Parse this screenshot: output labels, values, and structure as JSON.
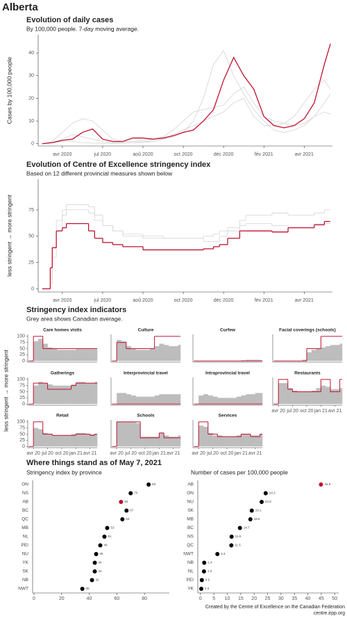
{
  "title": "Alberta",
  "credits": [
    "Created by the Centre of Excellence on the Canadian Federation",
    "centre.irpp.org"
  ],
  "chart_data": [
    {
      "type": "line",
      "title": "Evolution of daily cases",
      "subtitle": "By 100,000 people. 7-day moving average.",
      "y_label": "Cases by 100,000 people",
      "x": [
        2,
        2.5,
        3,
        3.5,
        4,
        4.5,
        5,
        5.5,
        6,
        6.5,
        7,
        7.5,
        8,
        8.5,
        9,
        9.5,
        10,
        10.5,
        11,
        11.5,
        12,
        12.5,
        13,
        13.5,
        14,
        14.5,
        15,
        15.5,
        16,
        16.3
      ],
      "xlim": [
        1.8,
        16.4
      ],
      "xticks": [
        {
          "value": 3,
          "label": "avr 2020"
        },
        {
          "value": 5,
          "label": "jul 2020"
        },
        {
          "value": 7,
          "label": "aoû 2020"
        },
        {
          "value": 9,
          "label": "oct 2020"
        },
        {
          "value": 11,
          "label": "déc 2020"
        },
        {
          "value": 13,
          "label": "fév 2021"
        },
        {
          "value": 15,
          "label": "avr 2021"
        }
      ],
      "ylim": [
        -1,
        48
      ],
      "yticks": [
        0,
        10,
        20,
        30,
        40
      ],
      "series": [
        {
          "color": "#d3d3d3",
          "values": [
            0,
            0.3,
            1,
            1,
            0.5,
            0.3,
            0.2,
            0.2,
            0.3,
            0.5,
            1,
            1,
            2,
            3,
            5,
            10,
            20,
            35,
            41,
            30,
            22,
            15,
            10,
            6,
            5,
            6,
            8,
            12,
            18,
            22
          ]
        },
        {
          "color": "#d3d3d3",
          "values": [
            0,
            1,
            5,
            9,
            11,
            10,
            6,
            2,
            1,
            1,
            1.5,
            2,
            3,
            6,
            10,
            14,
            15,
            16,
            17,
            22,
            25,
            18,
            12,
            10,
            9,
            8,
            9,
            12,
            14,
            13
          ]
        },
        {
          "color": "#d3d3d3",
          "values": [
            0,
            0.5,
            2,
            4,
            3,
            2,
            1,
            0.5,
            0.5,
            0.5,
            0.5,
            1,
            2,
            4,
            6,
            8,
            10,
            12,
            14,
            18,
            20,
            12,
            8,
            8,
            9,
            12,
            18,
            24,
            28,
            24
          ]
        },
        {
          "color": "#c0102e",
          "values": [
            0,
            0.5,
            1.5,
            2,
            5,
            6.5,
            2,
            1,
            1,
            2.5,
            2.5,
            2,
            2.5,
            3.5,
            5,
            6,
            10,
            15,
            28,
            38,
            30,
            24,
            12,
            8,
            7,
            8,
            11,
            18,
            35,
            44
          ]
        }
      ]
    },
    {
      "type": "step",
      "title": "Evolution of Centre of Excellence stringency index",
      "subtitle": "Based on 12 different provincial measures shown below",
      "y_label": "less stringent → more stringent",
      "x": [
        2,
        2.4,
        2.5,
        2.7,
        3,
        3.2,
        4.3,
        4.6,
        5,
        5.5,
        6,
        7,
        8,
        10,
        10.5,
        10.8,
        11.2,
        11.8,
        12.1,
        13.4,
        14.2,
        15.5,
        16,
        16.3
      ],
      "xlim": [
        1.8,
        16.4
      ],
      "xticks": [
        {
          "value": 3,
          "label": "avr 2020"
        },
        {
          "value": 5,
          "label": "jul 2020"
        },
        {
          "value": 7,
          "label": "aoû 2020"
        },
        {
          "value": 9,
          "label": "oct 2020"
        },
        {
          "value": 11,
          "label": "déc 2020"
        },
        {
          "value": 13,
          "label": "fév 2021"
        },
        {
          "value": 15,
          "label": "avr 2021"
        }
      ],
      "ylim": [
        -3,
        104
      ],
      "yticks": [
        0,
        25,
        50,
        75
      ],
      "series": [
        {
          "color": "#d3d3d3",
          "values": [
            0,
            5,
            30,
            55,
            70,
            75,
            72,
            65,
            60,
            55,
            50,
            48,
            48,
            50,
            52,
            55,
            58,
            60,
            62,
            60,
            58,
            60,
            62,
            62
          ]
        },
        {
          "color": "#d3d3d3",
          "values": [
            0,
            10,
            40,
            65,
            75,
            80,
            78,
            70,
            60,
            55,
            52,
            50,
            48,
            45,
            45,
            50,
            55,
            65,
            70,
            72,
            70,
            72,
            75,
            75
          ]
        },
        {
          "color": "#c0102e",
          "values": [
            0,
            20,
            39,
            55,
            58,
            62,
            55,
            48,
            44,
            42,
            40,
            37,
            37,
            38,
            40,
            42,
            48,
            55,
            55,
            54,
            58,
            61,
            64,
            64
          ]
        }
      ]
    },
    {
      "type": "small-multiples",
      "title": "Stringency index indicators",
      "subtitle": "Grey area shows Canadian average.",
      "y_label": "less stringent → more stringent",
      "x": [
        2,
        3,
        4,
        5,
        6,
        7,
        8,
        9,
        10,
        11,
        12,
        13,
        14,
        15,
        16
      ],
      "xlim": [
        1.8,
        16.5
      ],
      "xticks": [
        {
          "value": 3,
          "label": "avr 20"
        },
        {
          "value": 6,
          "label": "jul 20"
        },
        {
          "value": 9,
          "label": "oct 20"
        },
        {
          "value": 12,
          "label": "jan 21"
        },
        {
          "value": 15,
          "label": "avr 21"
        }
      ],
      "ylim": [
        -5,
        108
      ],
      "yticks": [
        0,
        25,
        50,
        75,
        100
      ],
      "color": "#c0102e",
      "average_color": "#bdbdbd",
      "panels": [
        {
          "title": "Care homes visits",
          "values": [
            0,
            100,
            100,
            50,
            50,
            50,
            50,
            50,
            50,
            50,
            50,
            50,
            50,
            50,
            50
          ],
          "average": [
            0,
            80,
            90,
            70,
            55,
            50,
            45,
            45,
            45,
            45,
            48,
            48,
            48,
            48,
            48
          ]
        },
        {
          "title": "Culture",
          "values": [
            0,
            75,
            75,
            50,
            50,
            50,
            50,
            50,
            50,
            100,
            100,
            100,
            100,
            100,
            100
          ],
          "average": [
            0,
            85,
            80,
            60,
            50,
            45,
            45,
            45,
            50,
            60,
            70,
            65,
            60,
            60,
            65
          ]
        },
        {
          "title": "Curfew",
          "values": [
            0,
            0,
            0,
            0,
            0,
            0,
            0,
            0,
            0,
            0,
            0,
            0,
            0,
            0,
            0
          ],
          "average": [
            0,
            0,
            0,
            0,
            0,
            0,
            0,
            0,
            0,
            0,
            3,
            5,
            5,
            5,
            3
          ]
        },
        {
          "title": "Facial coverings (schools)",
          "values": [
            0,
            0,
            0,
            0,
            0,
            0,
            0,
            50,
            50,
            50,
            100,
            100,
            100,
            100,
            100
          ],
          "average": [
            0,
            0,
            0,
            0,
            0,
            0,
            5,
            35,
            45,
            50,
            55,
            60,
            65,
            65,
            70
          ]
        },
        {
          "title": "Gatherings",
          "values": [
            0,
            85,
            85,
            85,
            60,
            60,
            60,
            60,
            60,
            75,
            85,
            85,
            85,
            85,
            85
          ],
          "average": [
            0,
            75,
            90,
            85,
            80,
            75,
            75,
            75,
            75,
            80,
            90,
            90,
            85,
            85,
            90
          ]
        },
        {
          "title": "Interprovincial travel",
          "values": [
            0,
            0,
            0,
            0,
            0,
            0,
            0,
            0,
            0,
            0,
            0,
            0,
            0,
            0,
            0
          ],
          "average": [
            0,
            45,
            45,
            40,
            35,
            30,
            30,
            30,
            30,
            35,
            40,
            40,
            40,
            40,
            40
          ]
        },
        {
          "title": "Intraprovincial travel",
          "values": [
            0,
            0,
            0,
            0,
            0,
            0,
            0,
            0,
            0,
            0,
            0,
            0,
            0,
            0,
            0
          ],
          "average": [
            0,
            35,
            40,
            35,
            30,
            25,
            25,
            25,
            25,
            30,
            35,
            40,
            40,
            45,
            45
          ]
        },
        {
          "title": "Restaurants",
          "values": [
            0,
            100,
            100,
            60,
            50,
            50,
            50,
            50,
            50,
            50,
            100,
            100,
            50,
            50,
            100
          ],
          "average": [
            0,
            85,
            85,
            65,
            55,
            50,
            50,
            50,
            55,
            65,
            75,
            70,
            60,
            60,
            65
          ]
        },
        {
          "title": "Retail",
          "values": [
            0,
            100,
            100,
            50,
            50,
            45,
            45,
            45,
            45,
            45,
            50,
            50,
            50,
            45,
            50
          ],
          "average": [
            0,
            75,
            70,
            55,
            50,
            45,
            45,
            45,
            45,
            50,
            55,
            55,
            50,
            50,
            50
          ]
        },
        {
          "title": "Schools",
          "values": [
            0,
            100,
            100,
            100,
            100,
            100,
            35,
            35,
            35,
            35,
            55,
            35,
            35,
            35,
            35
          ],
          "average": [
            0,
            100,
            100,
            100,
            100,
            95,
            40,
            40,
            40,
            40,
            55,
            45,
            40,
            40,
            45
          ]
        },
        {
          "title": "Services",
          "values": [
            0,
            100,
            100,
            50,
            50,
            40,
            40,
            40,
            40,
            40,
            50,
            50,
            40,
            40,
            50
          ],
          "average": [
            0,
            85,
            80,
            55,
            45,
            45,
            40,
            40,
            40,
            45,
            50,
            50,
            45,
            45,
            50
          ]
        }
      ]
    },
    {
      "type": "dot",
      "title": "Where things stand as of May 7, 2021",
      "subtitle": "Stringency index by province",
      "categories": [
        "ON",
        "NS",
        "AB",
        "BC",
        "QC",
        "MB",
        "NL",
        "PEI",
        "NU",
        "YK",
        "SK",
        "NB",
        "NWT"
      ],
      "values": [
        83,
        70,
        63,
        67,
        64,
        53,
        51,
        48,
        45,
        44,
        44,
        42,
        35
      ],
      "xlim": [
        -1,
        98
      ],
      "xticks": [
        0,
        20,
        40,
        60,
        80
      ],
      "color": "#000000",
      "highlight": "AB",
      "highlight_color": "#c0102e"
    },
    {
      "type": "dot",
      "subtitle": "Number of cases per 100,000 people",
      "categories": [
        "AB",
        "ON",
        "NU",
        "SK",
        "MB",
        "BC",
        "NS",
        "QC",
        "NWT",
        "NB",
        "NL",
        "PEI",
        "YK"
      ],
      "values": [
        44.9,
        24.3,
        22.8,
        19.1,
        18.6,
        14.7,
        11.6,
        11.5,
        6.3,
        1.4,
        1.3,
        0.5,
        0.3
      ],
      "xlim": [
        -1,
        51.5
      ],
      "xticks": [
        0,
        5,
        10,
        15,
        20,
        25,
        30,
        35,
        40,
        45,
        50
      ],
      "color": "#000000",
      "highlight": "AB",
      "highlight_color": "#c0102e"
    }
  ]
}
